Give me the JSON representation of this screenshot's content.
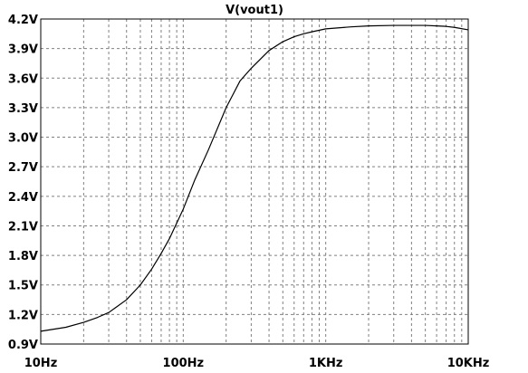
{
  "chart_data": {
    "type": "line",
    "title": "V(vout1)",
    "xlabel": "",
    "ylabel": "",
    "x_scale": "log",
    "xlim": [
      10,
      10000
    ],
    "ylim": [
      0.9,
      4.2
    ],
    "grid": true,
    "grid_style": "dashed",
    "x_ticks": [
      {
        "value": 10,
        "label": "10Hz"
      },
      {
        "value": 100,
        "label": "100Hz"
      },
      {
        "value": 1000,
        "label": "1KHz"
      },
      {
        "value": 10000,
        "label": "10KHz"
      }
    ],
    "y_ticks": [
      {
        "value": 0.9,
        "label": "0.9V"
      },
      {
        "value": 1.2,
        "label": "1.2V"
      },
      {
        "value": 1.5,
        "label": "1.5V"
      },
      {
        "value": 1.8,
        "label": "1.8V"
      },
      {
        "value": 2.1,
        "label": "2.1V"
      },
      {
        "value": 2.4,
        "label": "2.4V"
      },
      {
        "value": 2.7,
        "label": "2.7V"
      },
      {
        "value": 3.0,
        "label": "3.0V"
      },
      {
        "value": 3.3,
        "label": "3.3V"
      },
      {
        "value": 3.6,
        "label": "3.6V"
      },
      {
        "value": 3.9,
        "label": "3.9V"
      },
      {
        "value": 4.2,
        "label": "4.2V"
      }
    ],
    "series": [
      {
        "color": "#000000",
        "x": [
          10,
          15,
          20,
          25,
          30,
          40,
          50,
          60,
          70,
          80,
          100,
          120,
          150,
          200,
          250,
          300,
          400,
          500,
          600,
          700,
          800,
          1000,
          1500,
          2000,
          3000,
          4000,
          5000,
          6000,
          7000,
          8000,
          10000
        ],
        "y": [
          1.03,
          1.07,
          1.12,
          1.17,
          1.22,
          1.35,
          1.5,
          1.66,
          1.82,
          1.97,
          2.27,
          2.56,
          2.87,
          3.3,
          3.57,
          3.7,
          3.88,
          3.97,
          4.02,
          4.05,
          4.07,
          4.1,
          4.12,
          4.13,
          4.135,
          4.135,
          4.135,
          4.13,
          4.125,
          4.115,
          4.09
        ]
      }
    ]
  }
}
